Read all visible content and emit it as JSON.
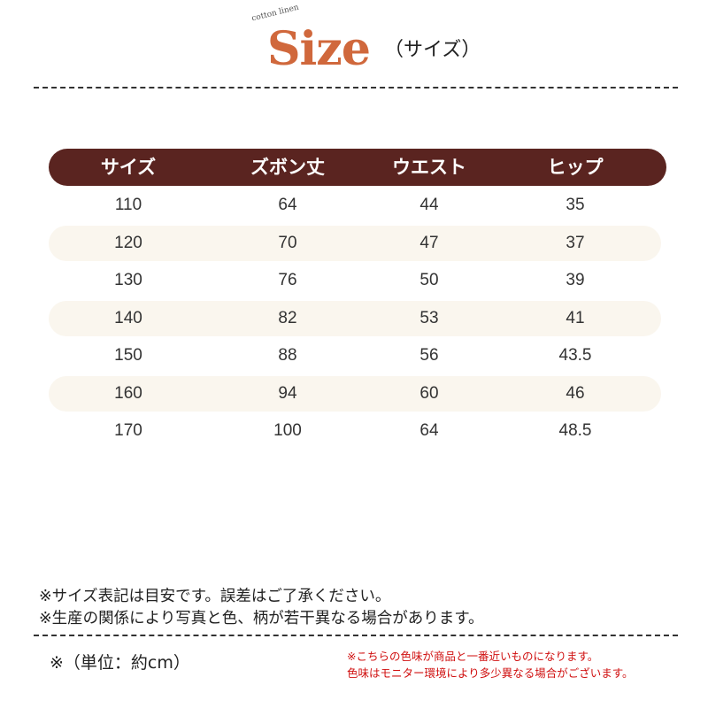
{
  "header": {
    "tagline": "cotton linen",
    "title": "Size",
    "subtitle": "（サイズ）",
    "title_color": "#d0683c"
  },
  "table": {
    "header_color": "#5a2420",
    "columns": [
      "サイズ",
      "ズボン丈",
      "ウエスト",
      "ヒップ"
    ],
    "rows": [
      [
        "110",
        "64",
        "44",
        "35"
      ],
      [
        "120",
        "70",
        "47",
        "37"
      ],
      [
        "130",
        "76",
        "50",
        "39"
      ],
      [
        "140",
        "82",
        "53",
        "41"
      ],
      [
        "150",
        "88",
        "56",
        "43.5"
      ],
      [
        "160",
        "94",
        "60",
        "46"
      ],
      [
        "170",
        "100",
        "64",
        "48.5"
      ]
    ]
  },
  "notes": [
    "※サイズ表記は目安です。誤差はご了承ください。",
    "※生産の関係により写真と色、柄が若干異なる場合があります。"
  ],
  "unit": "※（単位：約cm）",
  "color_notes": [
    "※こちらの色味が商品と一番近いものになります。",
    "色味はモニター環境により多少異なる場合がございます。"
  ]
}
